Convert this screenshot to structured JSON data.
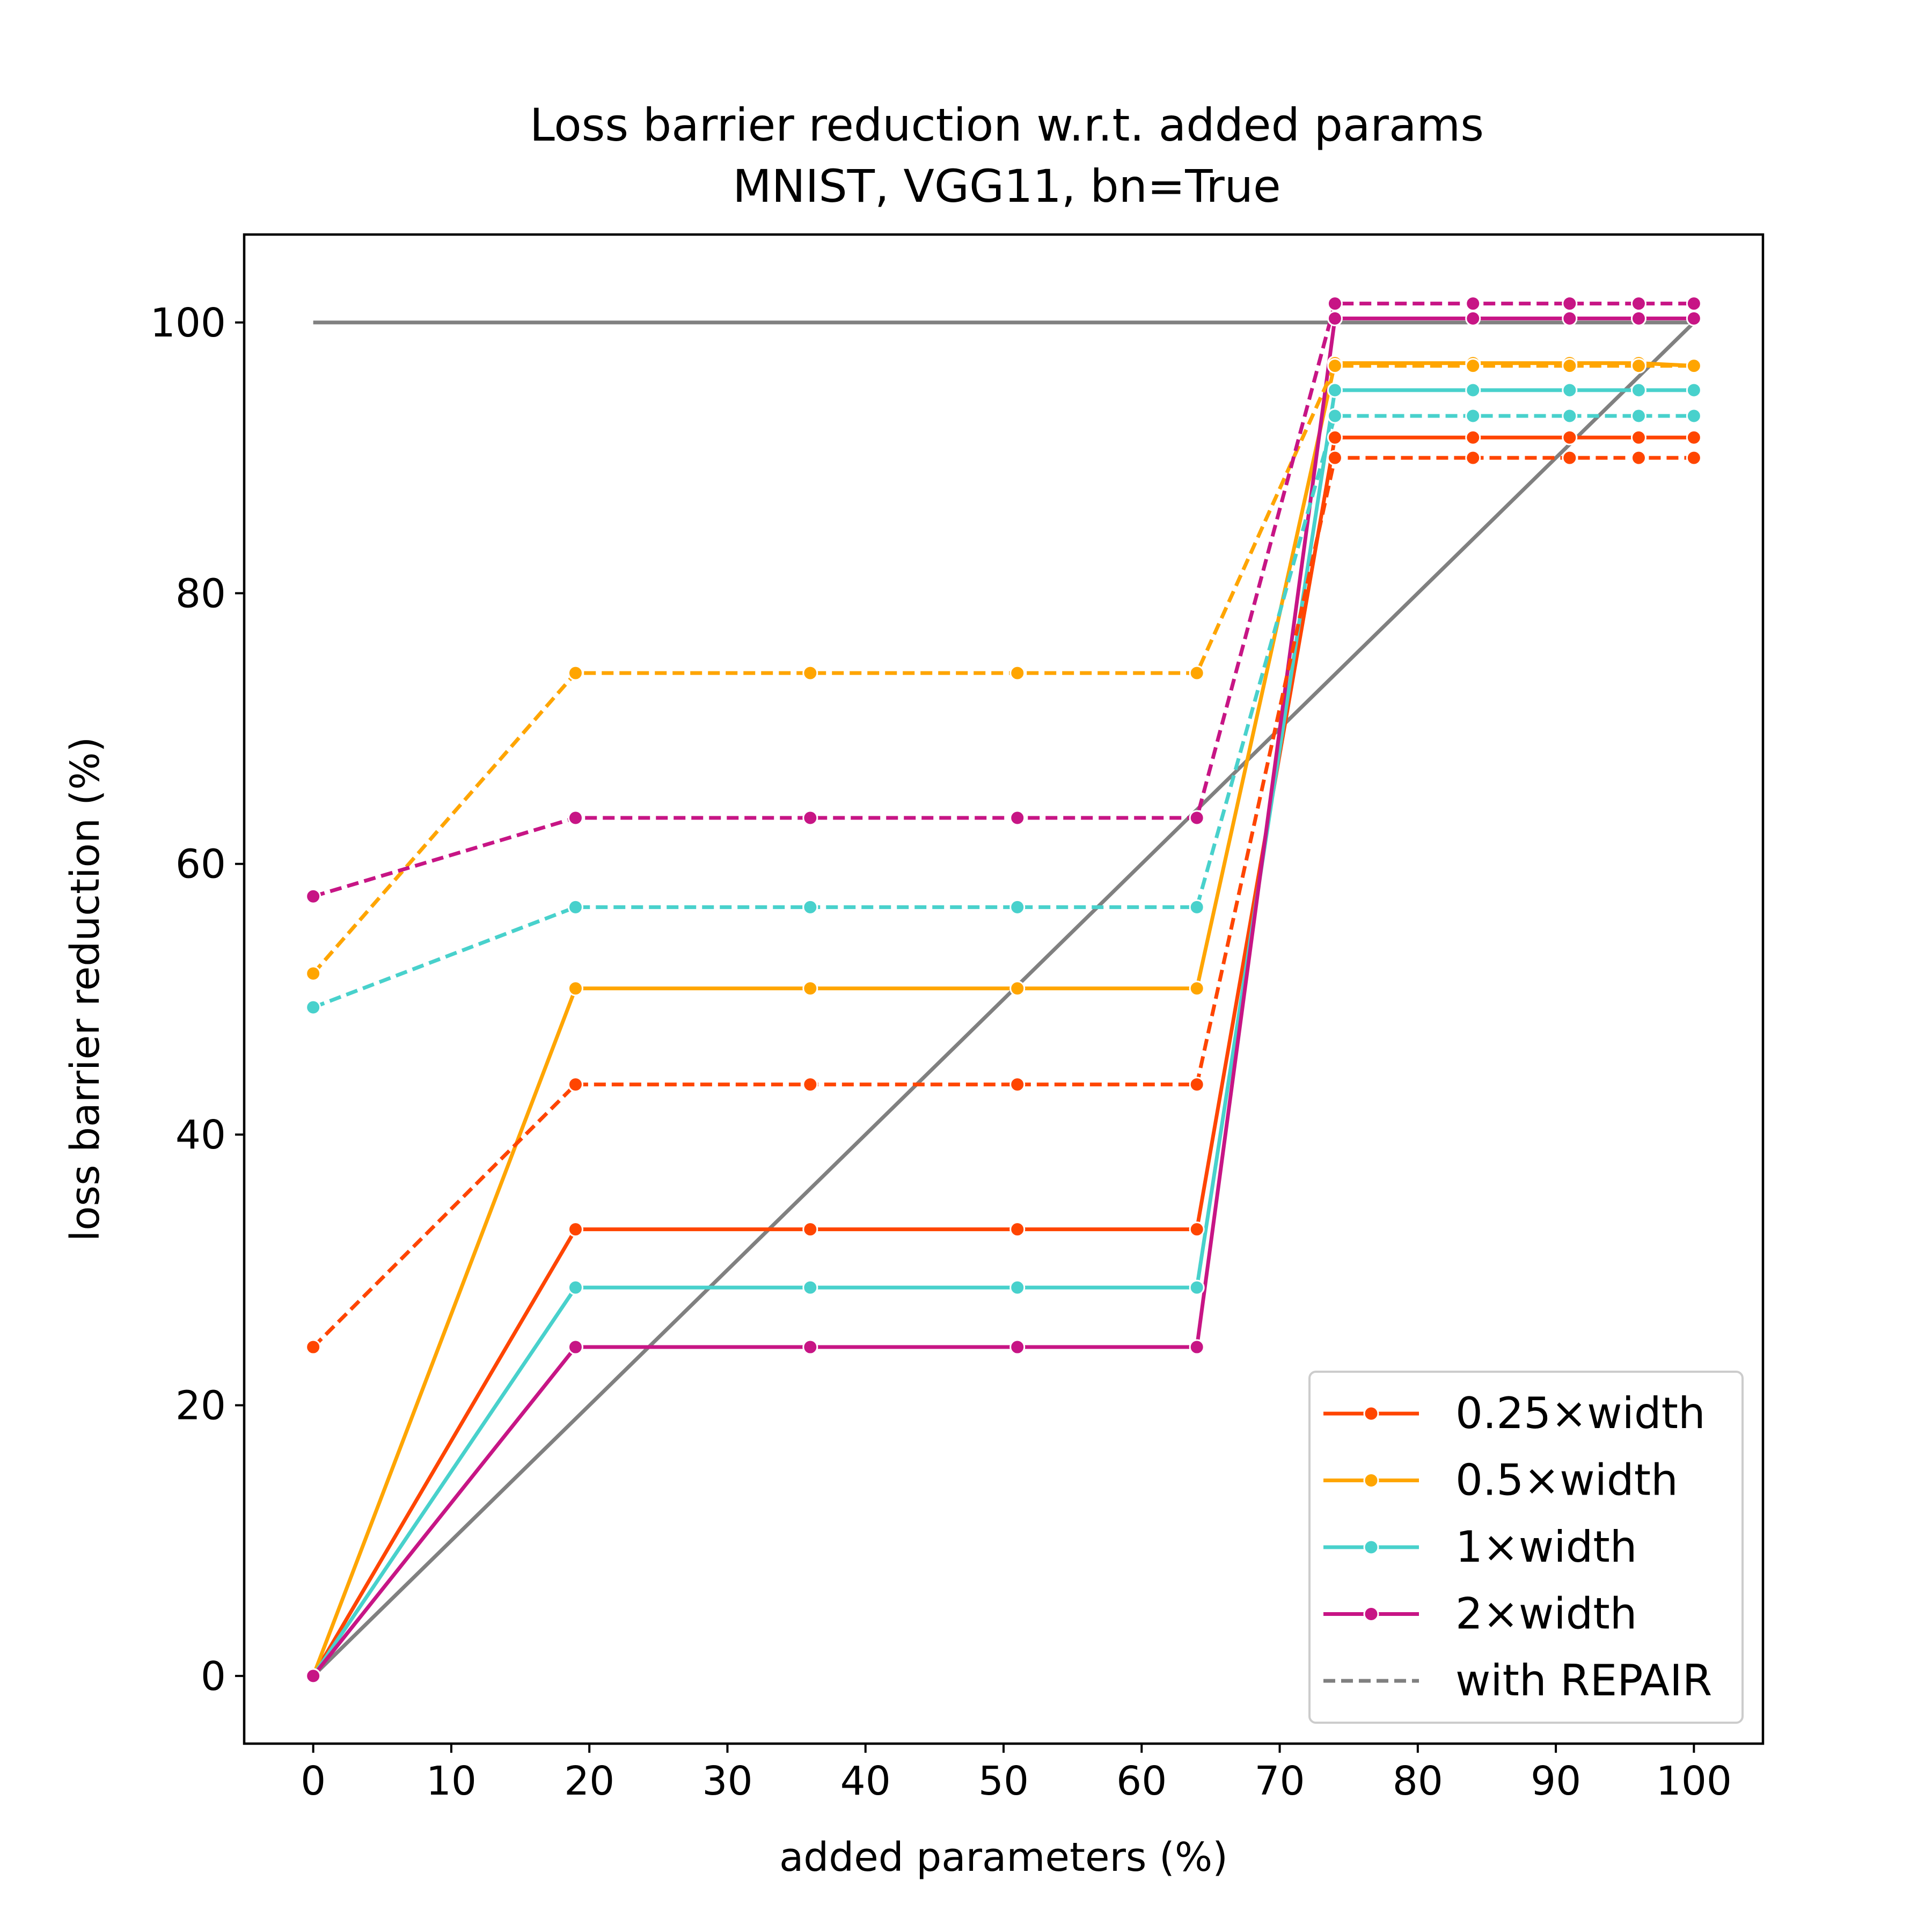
{
  "chart_data": {
    "type": "line",
    "title": "Loss barrier reduction w.r.t. added params",
    "subtitle": "MNIST, VGG11, bn=True",
    "xlabel": "added parameters (%)",
    "ylabel": "loss barrier reduction (%)",
    "xlim": [
      -5,
      105
    ],
    "ylim": [
      -5,
      106.5
    ],
    "xticks": [
      0,
      10,
      20,
      30,
      40,
      50,
      60,
      70,
      80,
      90,
      100
    ],
    "yticks": [
      0,
      20,
      40,
      60,
      80,
      100
    ],
    "grid": false,
    "legend_position": "lower-right",
    "reference_lines": [
      {
        "x": [
          0,
          100
        ],
        "y": [
          100,
          100
        ],
        "color": "#808080"
      },
      {
        "x": [
          0,
          100
        ],
        "y": [
          0,
          100
        ],
        "color": "#808080"
      }
    ],
    "series": [
      {
        "name": "0.25×width",
        "color": "#FF4500",
        "style": "solid",
        "x": [
          0,
          19,
          36,
          51,
          64,
          74,
          84,
          91,
          96,
          100
        ],
        "y": [
          0,
          33,
          33,
          33,
          33,
          91.5,
          91.5,
          91.5,
          91.5,
          91.5
        ]
      },
      {
        "name": "0.5×width",
        "color": "#FFA500",
        "style": "solid",
        "x": [
          0,
          19,
          36,
          51,
          64,
          74,
          84,
          91,
          96,
          100
        ],
        "y": [
          0,
          50.8,
          50.8,
          50.8,
          50.8,
          97,
          97,
          97,
          97,
          96.8
        ]
      },
      {
        "name": "1×width",
        "color": "#48D1CC",
        "style": "solid",
        "x": [
          0,
          19,
          36,
          51,
          64,
          74,
          84,
          91,
          96,
          100
        ],
        "y": [
          0,
          28.7,
          28.7,
          28.7,
          28.7,
          95,
          95,
          95,
          95,
          95
        ]
      },
      {
        "name": "2×width",
        "color": "#C71585",
        "style": "solid",
        "x": [
          0,
          19,
          36,
          51,
          64,
          74,
          84,
          91,
          96,
          100
        ],
        "y": [
          0,
          24.3,
          24.3,
          24.3,
          24.3,
          100.3,
          100.3,
          100.3,
          100.3,
          100.3
        ]
      },
      {
        "name": "",
        "color": "#FF4500",
        "style": "dashed",
        "x": [
          0,
          19,
          36,
          51,
          64,
          74,
          84,
          91,
          96,
          100
        ],
        "y": [
          24.3,
          43.7,
          43.7,
          43.7,
          43.7,
          90,
          90,
          90,
          90,
          90
        ]
      },
      {
        "name": "",
        "color": "#FFA500",
        "style": "dashed",
        "x": [
          0,
          19,
          36,
          51,
          64,
          74,
          84,
          91,
          96,
          100
        ],
        "y": [
          51.9,
          74.1,
          74.1,
          74.1,
          74.1,
          96.8,
          96.8,
          96.8,
          96.8,
          96.8
        ]
      },
      {
        "name": "",
        "color": "#48D1CC",
        "style": "dashed",
        "x": [
          0,
          19,
          36,
          51,
          64,
          74,
          84,
          91,
          96,
          100
        ],
        "y": [
          49.4,
          56.8,
          56.8,
          56.8,
          56.8,
          93.1,
          93.1,
          93.1,
          93.1,
          93.1
        ]
      },
      {
        "name": "",
        "color": "#C71585",
        "style": "dashed",
        "x": [
          0,
          19,
          36,
          51,
          64,
          74,
          84,
          91,
          96,
          100
        ],
        "y": [
          57.6,
          63.4,
          63.4,
          63.4,
          63.4,
          101.4,
          101.4,
          101.4,
          101.4,
          101.4
        ]
      }
    ],
    "legend": [
      {
        "label": "0.25×width",
        "color": "#FF4500",
        "style": "solid",
        "marker": true
      },
      {
        "label": "0.5×width",
        "color": "#FFA500",
        "style": "solid",
        "marker": true
      },
      {
        "label": "1×width",
        "color": "#48D1CC",
        "style": "solid",
        "marker": true
      },
      {
        "label": "2×width",
        "color": "#C71585",
        "style": "solid",
        "marker": true
      },
      {
        "label": "with REPAIR",
        "color": "#808080",
        "style": "dashed",
        "marker": false
      }
    ]
  }
}
